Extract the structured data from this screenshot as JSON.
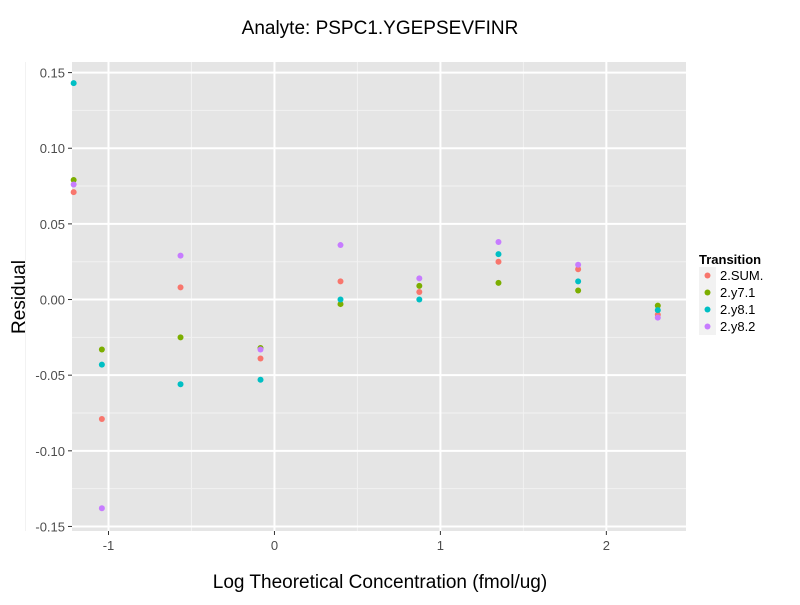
{
  "chart_data": {
    "type": "scatter",
    "title": "Analyte: PSPC1.YGEPSEVFINR",
    "xlabel": "Log Theoretical Concentration (fmol/ug)",
    "ylabel": "Residual",
    "xlim": [
      -1.22,
      2.48
    ],
    "ylim": [
      -0.153,
      0.157
    ],
    "xticks": [
      -1,
      0,
      1,
      2
    ],
    "xtick_labels": [
      "-1",
      "0",
      "1",
      "2"
    ],
    "yticks": [
      -0.15,
      -0.1,
      -0.05,
      0.0,
      0.05,
      0.1,
      0.15
    ],
    "ytick_labels": [
      "-0.15",
      "-0.10",
      "-0.05",
      "0.00",
      "0.05",
      "0.10",
      "0.15"
    ],
    "grid": true,
    "legend": {
      "title": "Transition",
      "placement": "right"
    },
    "x": [
      -1.21,
      -1.04,
      -0.566,
      -0.084,
      0.398,
      0.873,
      1.35,
      1.83,
      2.31
    ],
    "series": [
      {
        "name": "2.SUM.",
        "color": "#F8766D",
        "values": [
          0.071,
          -0.079,
          0.008,
          -0.039,
          0.012,
          0.005,
          0.025,
          0.02,
          -0.01
        ]
      },
      {
        "name": "2.y7.1",
        "color": "#7CAE00",
        "values": [
          0.079,
          -0.033,
          -0.025,
          -0.032,
          -0.003,
          0.009,
          0.011,
          0.006,
          -0.004
        ]
      },
      {
        "name": "2.y8.1",
        "color": "#00BFC4",
        "values": [
          0.143,
          -0.043,
          -0.056,
          -0.053,
          0.0,
          0.0,
          0.03,
          0.012,
          -0.007
        ]
      },
      {
        "name": "2.y8.2",
        "color": "#C77CFF",
        "values": [
          0.076,
          -0.138,
          0.029,
          -0.033,
          0.036,
          0.014,
          0.038,
          0.023,
          -0.012
        ]
      }
    ]
  }
}
